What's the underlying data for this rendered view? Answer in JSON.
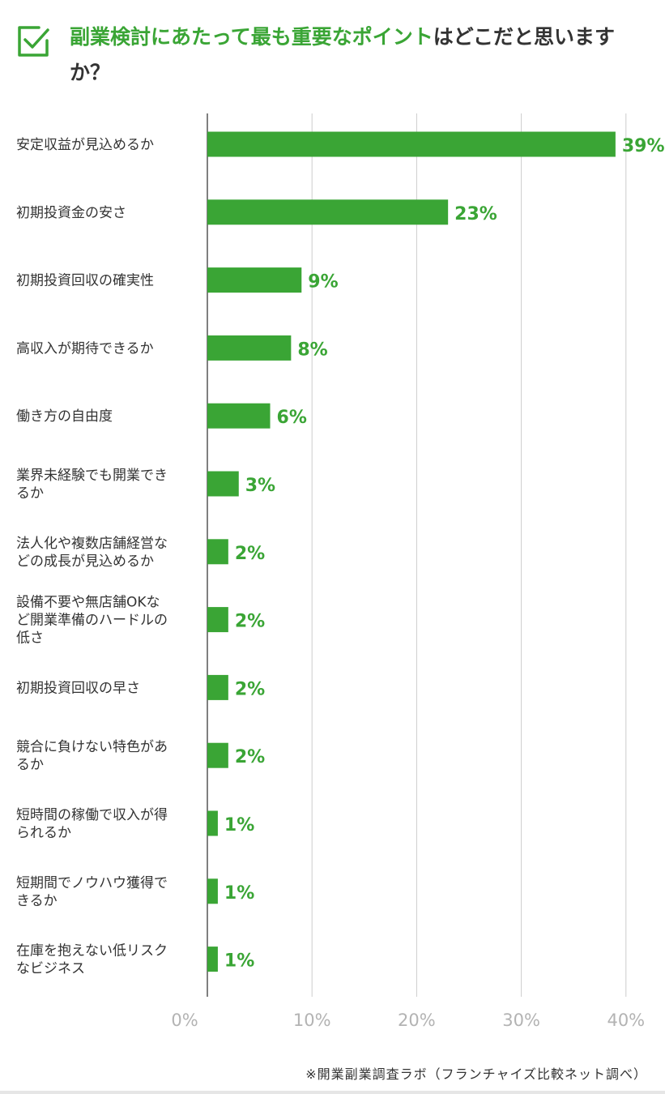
{
  "title": {
    "highlight": "副業検討にあたって最も重要なポイント",
    "rest": "はどこだと思いますか？"
  },
  "colors": {
    "accent": "#3aa535",
    "grid": "#cccccc",
    "tick": "#b3b3b3"
  },
  "icon": "checkbox-check-icon",
  "chart_data": {
    "type": "bar",
    "orientation": "horizontal",
    "categories": [
      "安定収益が見込めるか",
      "初期投資金の安さ",
      "初期投資回収の確実性",
      "高収入が期待できるか",
      "働き方の自由度",
      "業界未経験でも開業できるか",
      "法人化や複数店舗経営などの成長が見込めるか",
      "設備不要や無店舗OKなど開業準備のハードルの低さ",
      "初期投資回収の早さ",
      "競合に負けない特色があるか",
      "短時間の稼働で収入が得られるか",
      "短期間でノウハウ獲得できるか",
      "在庫を抱えない低リスクなビジネス"
    ],
    "category_lines": [
      [
        "安定収益が見込めるか"
      ],
      [
        "初期投資金の安さ"
      ],
      [
        "初期投資回収の確実性"
      ],
      [
        "高収入が期待できるか"
      ],
      [
        "働き方の自由度"
      ],
      [
        "業界未経験でも開業でき",
        "るか"
      ],
      [
        "法人化や複数店舗経営な",
        "どの成長が見込めるか"
      ],
      [
        "設備不要や無店舗OKな",
        "ど開業準備のハードルの",
        "低さ"
      ],
      [
        "初期投資回収の早さ"
      ],
      [
        "競合に負けない特色があ",
        "るか"
      ],
      [
        "短時間の稼働で収入が得",
        "られるか"
      ],
      [
        "短期間でノウハウ獲得で",
        "きるか"
      ],
      [
        "在庫を抱えない低リスク",
        "なビジネス"
      ]
    ],
    "values": [
      39,
      23,
      9,
      8,
      6,
      3,
      2,
      2,
      2,
      2,
      1,
      1,
      1
    ],
    "value_labels": [
      "39%",
      "23%",
      "9%",
      "8%",
      "6%",
      "3%",
      "2%",
      "2%",
      "2%",
      "2%",
      "1%",
      "1%",
      "1%"
    ],
    "x_ticks": [
      "0%",
      "10%",
      "20%",
      "30%",
      "40%"
    ],
    "xlim": [
      0,
      40
    ],
    "grid": true,
    "bar_color": "#3aa535"
  },
  "footer": "※開業副業調査ラボ（フランチャイズ比較ネット調べ）"
}
